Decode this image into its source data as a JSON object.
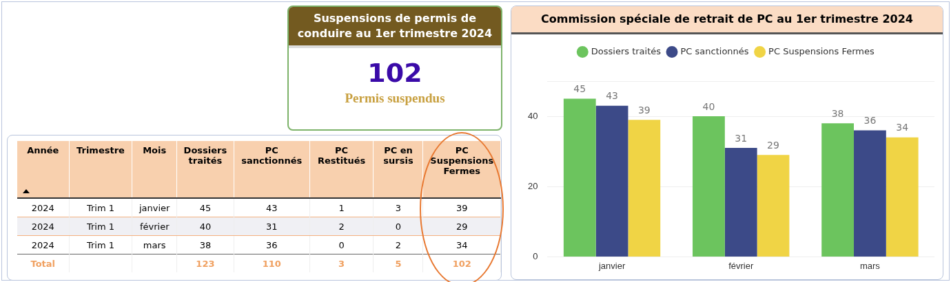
{
  "chart_data": [
    {
      "type": "other",
      "title": "Suspensions de permis de conduire au 1er trimestre 2024",
      "values": [
        102
      ],
      "data_labels": true,
      "annotations": [
        "Permis suspendus"
      ]
    },
    {
      "type": "other",
      "categories": [
        "Année",
        "Trimestre",
        "Mois",
        "Dossiers traités",
        "PC sanctionnés",
        "PC Restitués",
        "PC en sursis",
        "PC Suspensions Fermes"
      ],
      "cell_labels": [
        [
          "2024",
          "Trim 1",
          "janvier",
          "45",
          "43",
          "1",
          "3",
          "39"
        ],
        [
          "2024",
          "Trim 1",
          "février",
          "40",
          "31",
          "2",
          "0",
          "29"
        ],
        [
          "2024",
          "Trim 1",
          "mars",
          "38",
          "36",
          "0",
          "2",
          "34"
        ],
        [
          "Total",
          null,
          null,
          "123",
          "110",
          "3",
          "5",
          "102"
        ]
      ]
    },
    {
      "type": "bar",
      "title": "Commission spéciale de retrait de PC au 1er trimestre 2024",
      "categories": [
        "janvier",
        "février",
        "mars"
      ],
      "series": [
        {
          "name": "Dossiers traités",
          "color": "#6cc45e",
          "values": [
            45,
            40,
            38
          ]
        },
        {
          "name": "PC sanctionnés",
          "color": "#3c4a88",
          "values": [
            43,
            31,
            36
          ]
        },
        {
          "name": "PC Suspensions Fermes",
          "color": "#f0d445",
          "values": [
            39,
            29,
            34
          ]
        }
      ],
      "ylim": [
        0,
        50
      ],
      "yticks": [
        0,
        20,
        40,
        {
          "value": 50,
          "label": null
        }
      ],
      "grid": "y",
      "legend": "top",
      "data_labels": true
    }
  ]
}
